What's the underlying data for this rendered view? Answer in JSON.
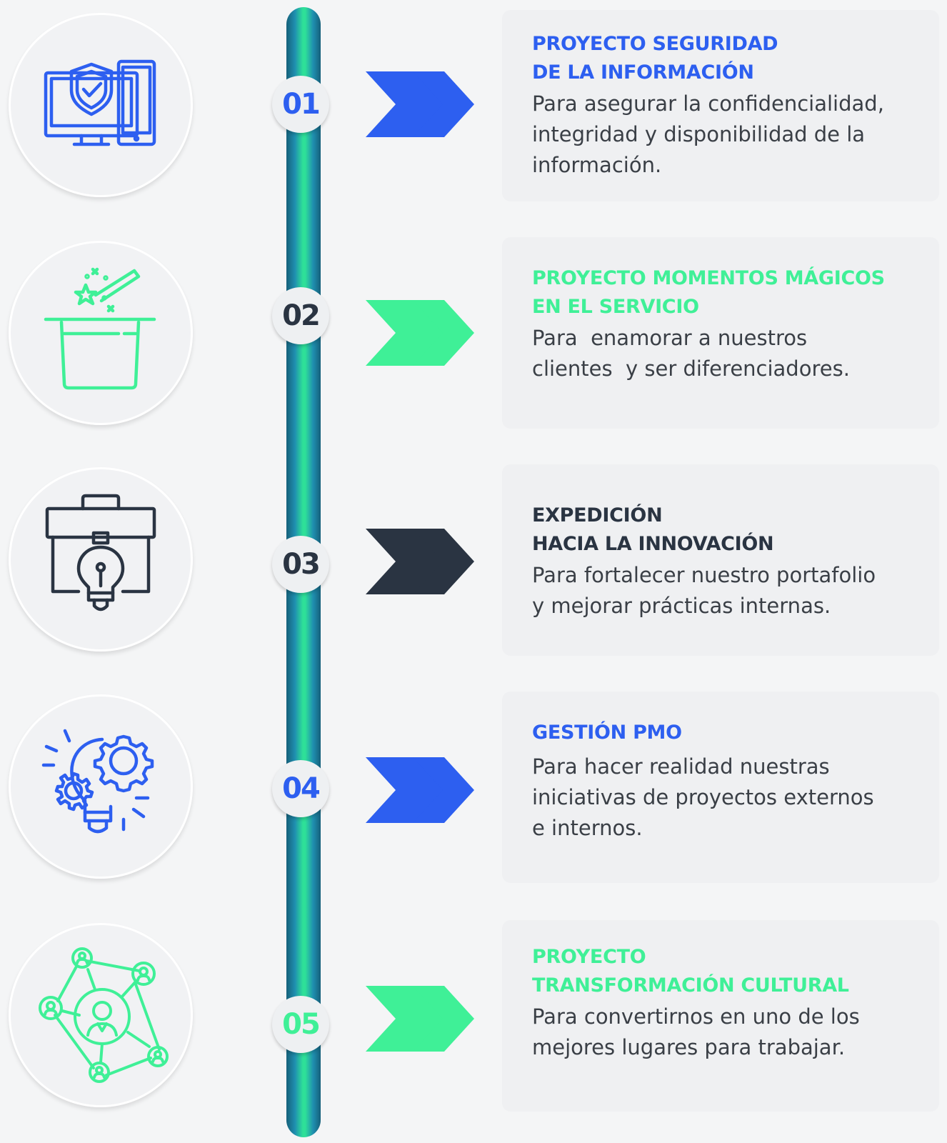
{
  "colors": {
    "blue": "#2d5ff0",
    "green": "#3ff097",
    "dark": "#2a3442",
    "text": "#3a3f46"
  },
  "items": [
    {
      "number": "01",
      "icon": "shield-devices-icon",
      "title_lines": [
        "PROYECTO SEGURIDAD",
        "DE LA INFORMACIÓN"
      ],
      "desc_lines": [
        "Para asegurar la confidencialidad,",
        "integridad y disponibilidad de la",
        "información."
      ],
      "color": "#2d5ff0"
    },
    {
      "number": "02",
      "icon": "magic-hat-icon",
      "title_lines": [
        "PROYECTO MOMENTOS MÁGICOS",
        "EN EL SERVICIO"
      ],
      "desc_lines": [
        "Para  enamorar a nuestros",
        "clientes  y ser diferenciadores."
      ],
      "color": "#3ff097"
    },
    {
      "number": "03",
      "icon": "briefcase-lightbulb-icon",
      "title_lines": [
        "EXPEDICIÓN",
        "HACIA LA INNOVACIÓN"
      ],
      "desc_lines": [
        "Para fortalecer nuestro portafolio",
        "y mejorar prácticas internas."
      ],
      "color": "#2a3442"
    },
    {
      "number": "04",
      "icon": "gears-lightbulb-icon",
      "title_lines": [
        "GESTIÓN PMO"
      ],
      "desc_lines": [
        "Para hacer realidad nuestras",
        "iniciativas de proyectos externos",
        "e internos."
      ],
      "color": "#2d5ff0"
    },
    {
      "number": "05",
      "icon": "people-network-icon",
      "title_lines": [
        "PROYECTO",
        "TRANSFORMACIÓN CULTURAL"
      ],
      "desc_lines": [
        "Para convertirnos en uno de los",
        "mejores lugares para trabajar."
      ],
      "color": "#3ff097"
    }
  ]
}
